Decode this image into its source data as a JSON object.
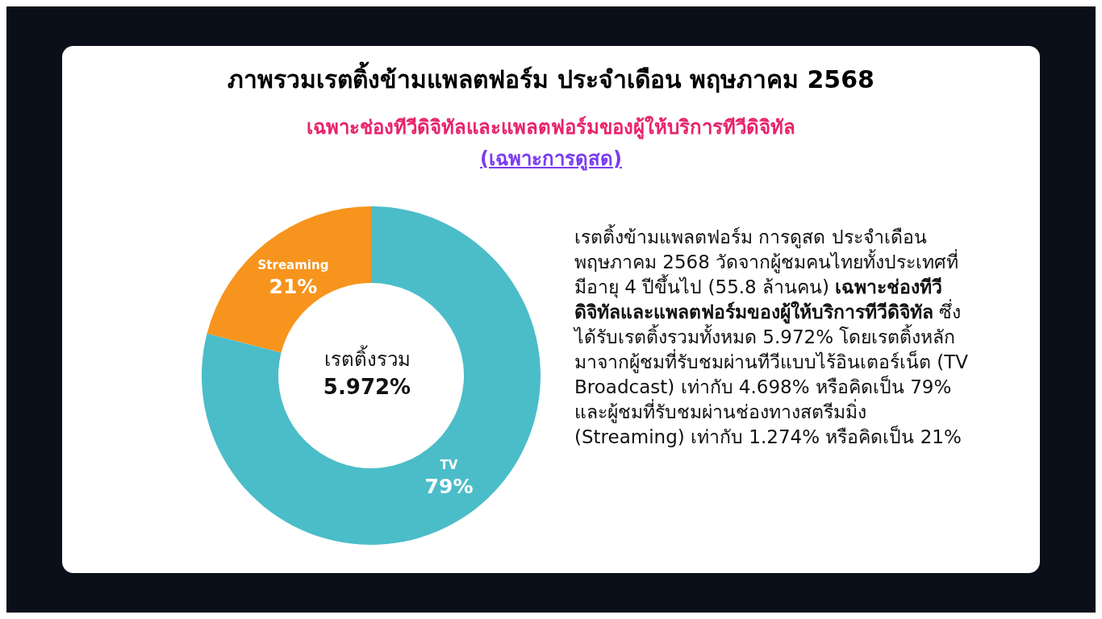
{
  "chart_data": {
    "type": "donut",
    "title": "ภาพรวมเรตติ้งข้ามแพลตฟอร์ม ประจำเดือน พฤษภาคม 2568",
    "subtitle": "เฉพาะช่องทีวีดิจิทัลและแพลตฟอร์มของผู้ให้บริการทีวีดิจิทัล",
    "categories": [
      "TV",
      "Streaming"
    ],
    "values": [
      79,
      21
    ],
    "colors": [
      "#4bbdc8",
      "#f7941d"
    ],
    "value_labels": [
      "79%",
      "21%"
    ],
    "legend": false,
    "annotations": [
      "(เฉพาะการดูสด)",
      "เรตติ้งรวม",
      "5.972%",
      "เรตติ้งข้ามแพลตฟอร์ม การดูสด ประจำเดือนพฤษภาคม 2568 วัดจากผู้ชมคนไทยทั้งประเทศที่มีอายุ 4 ปีขึ้นไป (55.8 ล้านคน)",
      "เฉพาะช่องทีวีดิจิทัลและแพลตฟอร์มของผู้ให้บริการทีวีดิจิทัล",
      "ซึ่งได้รับเรตติ้งรวมทั้งหมด 5.972% โดยเรตติ้งหลักมาจากผู้ชมที่รับชมผ่านทีวีแบบไร้อินเตอร์เน็ต (TV Broadcast) เท่ากับ 4.698% หรือคิดเป็น 79% และผู้ชมที่รับชมผ่านช่องทางสตรีมมิ่ง (Streaming) เท่ากับ 1.274% หรือคิดเป็น 21%"
    ]
  }
}
